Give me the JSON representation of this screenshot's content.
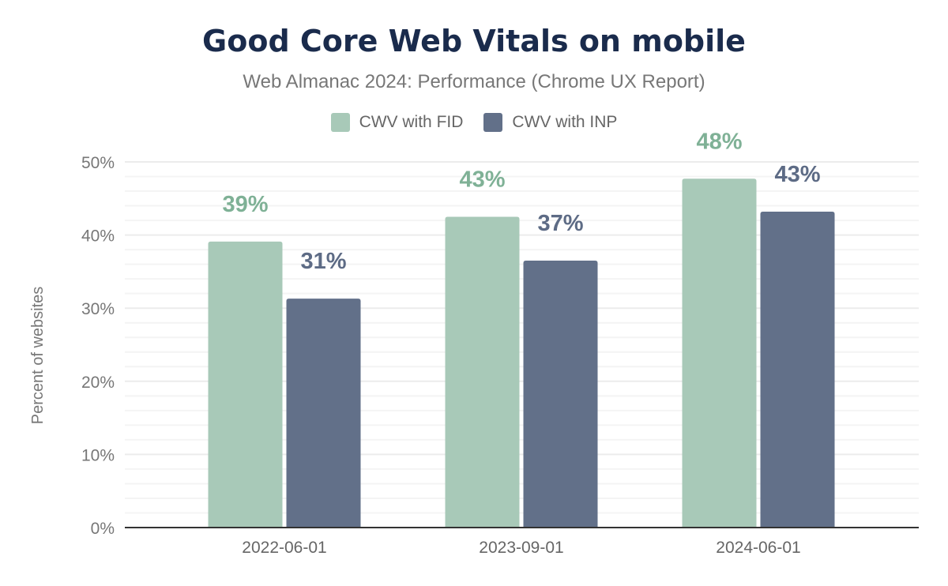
{
  "chart_data": {
    "type": "bar",
    "title": "Good Core Web Vitals on mobile",
    "subtitle": "Web Almanac 2024: Performance (Chrome UX Report)",
    "xlabel": "",
    "ylabel": "Percent of websites",
    "ylim": [
      0,
      50
    ],
    "yticks": [
      "0%",
      "10%",
      "20%",
      "30%",
      "40%",
      "50%"
    ],
    "grid": true,
    "legend_position": "top",
    "categories": [
      "2022-06-01",
      "2023-09-01",
      "2024-06-01"
    ],
    "series": [
      {
        "name": "CWV with FID",
        "color": "#a8c9b8",
        "label_color": "#7fb196",
        "values": [
          39.1,
          42.5,
          47.7
        ],
        "labels": [
          "39%",
          "43%",
          "48%"
        ]
      },
      {
        "name": "CWV with INP",
        "color": "#627089",
        "label_color": "#5d6b85",
        "values": [
          31.3,
          36.5,
          43.2
        ],
        "labels": [
          "31%",
          "37%",
          "43%"
        ]
      }
    ]
  }
}
